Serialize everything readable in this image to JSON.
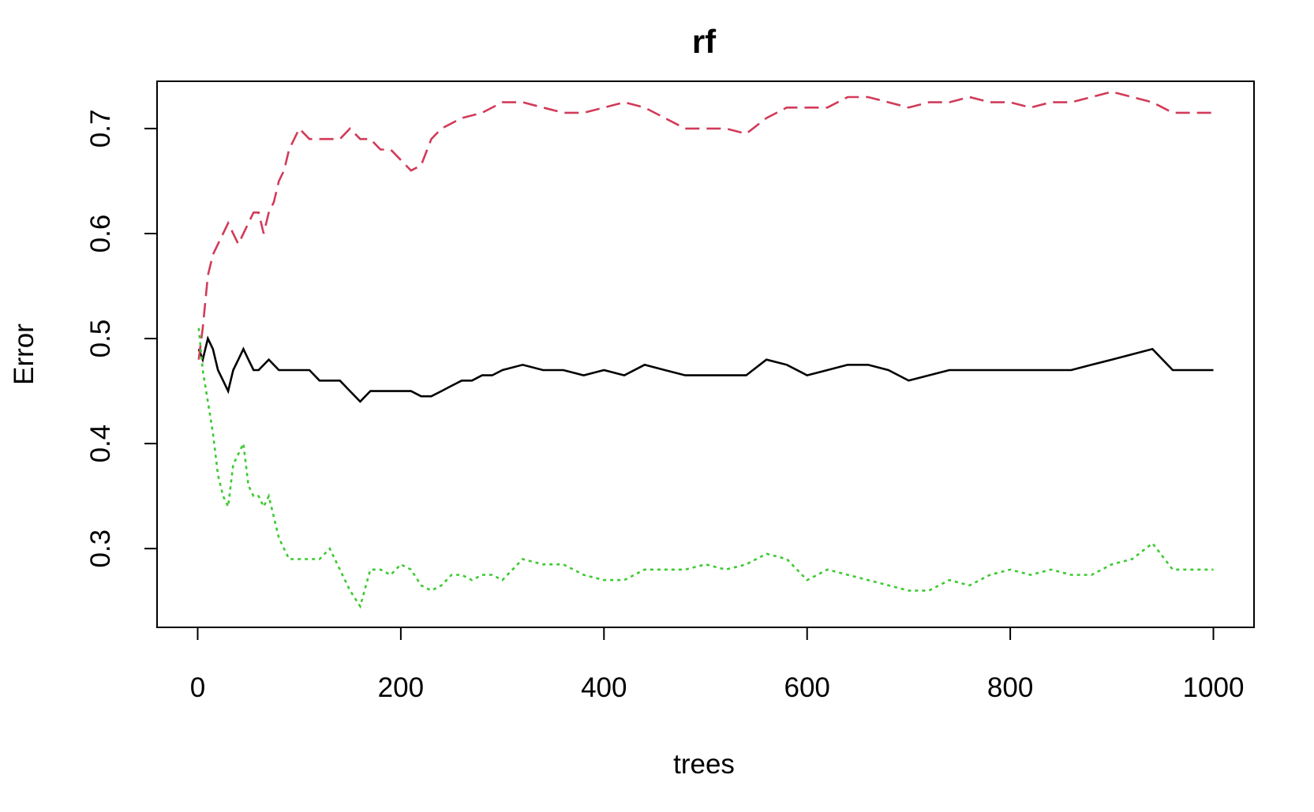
{
  "chart_data": {
    "type": "line",
    "title": "rf",
    "xlabel": "trees",
    "ylabel": "Error",
    "xlim": [
      -40,
      1040
    ],
    "ylim": [
      0.225,
      0.745
    ],
    "xticks": [
      0,
      200,
      400,
      600,
      800,
      1000
    ],
    "yticks": [
      0.3,
      0.4,
      0.5,
      0.6,
      0.7
    ],
    "grid": false,
    "legend": "none",
    "series": [
      {
        "color": "#000000",
        "dash": "solid",
        "points": [
          [
            1,
            0.49
          ],
          [
            5,
            0.48
          ],
          [
            10,
            0.5
          ],
          [
            15,
            0.49
          ],
          [
            20,
            0.47
          ],
          [
            25,
            0.46
          ],
          [
            30,
            0.45
          ],
          [
            35,
            0.47
          ],
          [
            40,
            0.48
          ],
          [
            45,
            0.49
          ],
          [
            50,
            0.48
          ],
          [
            55,
            0.47
          ],
          [
            60,
            0.47
          ],
          [
            70,
            0.48
          ],
          [
            80,
            0.47
          ],
          [
            90,
            0.47
          ],
          [
            100,
            0.47
          ],
          [
            110,
            0.47
          ],
          [
            120,
            0.46
          ],
          [
            130,
            0.46
          ],
          [
            140,
            0.46
          ],
          [
            150,
            0.45
          ],
          [
            160,
            0.44
          ],
          [
            170,
            0.45
          ],
          [
            180,
            0.45
          ],
          [
            190,
            0.45
          ],
          [
            200,
            0.45
          ],
          [
            210,
            0.45
          ],
          [
            220,
            0.445
          ],
          [
            230,
            0.445
          ],
          [
            240,
            0.45
          ],
          [
            250,
            0.455
          ],
          [
            260,
            0.46
          ],
          [
            270,
            0.46
          ],
          [
            280,
            0.465
          ],
          [
            290,
            0.465
          ],
          [
            300,
            0.47
          ],
          [
            320,
            0.475
          ],
          [
            340,
            0.47
          ],
          [
            360,
            0.47
          ],
          [
            380,
            0.465
          ],
          [
            400,
            0.47
          ],
          [
            420,
            0.465
          ],
          [
            440,
            0.475
          ],
          [
            460,
            0.47
          ],
          [
            480,
            0.465
          ],
          [
            500,
            0.465
          ],
          [
            520,
            0.465
          ],
          [
            540,
            0.465
          ],
          [
            560,
            0.48
          ],
          [
            580,
            0.475
          ],
          [
            600,
            0.465
          ],
          [
            620,
            0.47
          ],
          [
            640,
            0.475
          ],
          [
            660,
            0.475
          ],
          [
            680,
            0.47
          ],
          [
            700,
            0.46
          ],
          [
            720,
            0.465
          ],
          [
            740,
            0.47
          ],
          [
            760,
            0.47
          ],
          [
            780,
            0.47
          ],
          [
            800,
            0.47
          ],
          [
            820,
            0.47
          ],
          [
            840,
            0.47
          ],
          [
            860,
            0.47
          ],
          [
            880,
            0.475
          ],
          [
            900,
            0.48
          ],
          [
            920,
            0.485
          ],
          [
            940,
            0.49
          ],
          [
            960,
            0.47
          ],
          [
            980,
            0.47
          ],
          [
            1000,
            0.47
          ]
        ]
      },
      {
        "color": "#d13b59",
        "dash": "longdash",
        "points": [
          [
            1,
            0.48
          ],
          [
            5,
            0.51
          ],
          [
            10,
            0.56
          ],
          [
            15,
            0.58
          ],
          [
            20,
            0.59
          ],
          [
            25,
            0.6
          ],
          [
            30,
            0.61
          ],
          [
            35,
            0.6
          ],
          [
            40,
            0.59
          ],
          [
            45,
            0.6
          ],
          [
            50,
            0.61
          ],
          [
            55,
            0.62
          ],
          [
            60,
            0.62
          ],
          [
            65,
            0.6
          ],
          [
            70,
            0.62
          ],
          [
            75,
            0.63
          ],
          [
            80,
            0.65
          ],
          [
            85,
            0.66
          ],
          [
            90,
            0.68
          ],
          [
            95,
            0.69
          ],
          [
            100,
            0.7
          ],
          [
            110,
            0.69
          ],
          [
            120,
            0.69
          ],
          [
            130,
            0.69
          ],
          [
            140,
            0.69
          ],
          [
            150,
            0.7
          ],
          [
            160,
            0.69
          ],
          [
            170,
            0.69
          ],
          [
            180,
            0.68
          ],
          [
            190,
            0.68
          ],
          [
            200,
            0.67
          ],
          [
            210,
            0.66
          ],
          [
            220,
            0.665
          ],
          [
            230,
            0.69
          ],
          [
            240,
            0.7
          ],
          [
            260,
            0.71
          ],
          [
            280,
            0.715
          ],
          [
            300,
            0.725
          ],
          [
            320,
            0.725
          ],
          [
            340,
            0.72
          ],
          [
            360,
            0.715
          ],
          [
            380,
            0.715
          ],
          [
            400,
            0.72
          ],
          [
            420,
            0.725
          ],
          [
            440,
            0.72
          ],
          [
            460,
            0.71
          ],
          [
            480,
            0.7
          ],
          [
            500,
            0.7
          ],
          [
            520,
            0.7
          ],
          [
            540,
            0.695
          ],
          [
            560,
            0.71
          ],
          [
            580,
            0.72
          ],
          [
            600,
            0.72
          ],
          [
            620,
            0.72
          ],
          [
            640,
            0.73
          ],
          [
            660,
            0.73
          ],
          [
            680,
            0.725
          ],
          [
            700,
            0.72
          ],
          [
            720,
            0.725
          ],
          [
            740,
            0.725
          ],
          [
            760,
            0.73
          ],
          [
            780,
            0.725
          ],
          [
            800,
            0.725
          ],
          [
            820,
            0.72
          ],
          [
            840,
            0.725
          ],
          [
            860,
            0.725
          ],
          [
            880,
            0.73
          ],
          [
            900,
            0.735
          ],
          [
            920,
            0.73
          ],
          [
            940,
            0.725
          ],
          [
            960,
            0.715
          ],
          [
            980,
            0.715
          ],
          [
            1000,
            0.715
          ]
        ]
      },
      {
        "color": "#3dc932",
        "dash": "dotted",
        "points": [
          [
            1,
            0.51
          ],
          [
            5,
            0.47
          ],
          [
            10,
            0.44
          ],
          [
            15,
            0.41
          ],
          [
            20,
            0.37
          ],
          [
            25,
            0.35
          ],
          [
            30,
            0.34
          ],
          [
            35,
            0.38
          ],
          [
            40,
            0.39
          ],
          [
            45,
            0.4
          ],
          [
            50,
            0.36
          ],
          [
            55,
            0.35
          ],
          [
            60,
            0.35
          ],
          [
            65,
            0.34
          ],
          [
            70,
            0.35
          ],
          [
            75,
            0.33
          ],
          [
            80,
            0.31
          ],
          [
            85,
            0.3
          ],
          [
            90,
            0.29
          ],
          [
            100,
            0.29
          ],
          [
            110,
            0.29
          ],
          [
            120,
            0.29
          ],
          [
            130,
            0.3
          ],
          [
            140,
            0.28
          ],
          [
            150,
            0.26
          ],
          [
            160,
            0.245
          ],
          [
            170,
            0.28
          ],
          [
            180,
            0.28
          ],
          [
            190,
            0.275
          ],
          [
            200,
            0.285
          ],
          [
            210,
            0.28
          ],
          [
            220,
            0.265
          ],
          [
            230,
            0.26
          ],
          [
            240,
            0.265
          ],
          [
            250,
            0.275
          ],
          [
            260,
            0.275
          ],
          [
            270,
            0.27
          ],
          [
            280,
            0.275
          ],
          [
            290,
            0.275
          ],
          [
            300,
            0.27
          ],
          [
            320,
            0.29
          ],
          [
            340,
            0.285
          ],
          [
            360,
            0.285
          ],
          [
            380,
            0.275
          ],
          [
            400,
            0.27
          ],
          [
            420,
            0.27
          ],
          [
            440,
            0.28
          ],
          [
            460,
            0.28
          ],
          [
            480,
            0.28
          ],
          [
            500,
            0.285
          ],
          [
            520,
            0.28
          ],
          [
            540,
            0.285
          ],
          [
            560,
            0.295
          ],
          [
            580,
            0.29
          ],
          [
            600,
            0.27
          ],
          [
            620,
            0.28
          ],
          [
            640,
            0.275
          ],
          [
            660,
            0.27
          ],
          [
            680,
            0.265
          ],
          [
            700,
            0.26
          ],
          [
            720,
            0.26
          ],
          [
            740,
            0.27
          ],
          [
            760,
            0.265
          ],
          [
            780,
            0.275
          ],
          [
            800,
            0.28
          ],
          [
            820,
            0.275
          ],
          [
            840,
            0.28
          ],
          [
            860,
            0.275
          ],
          [
            880,
            0.275
          ],
          [
            900,
            0.285
          ],
          [
            920,
            0.29
          ],
          [
            940,
            0.305
          ],
          [
            960,
            0.28
          ],
          [
            980,
            0.28
          ],
          [
            1000,
            0.28
          ]
        ]
      }
    ]
  }
}
